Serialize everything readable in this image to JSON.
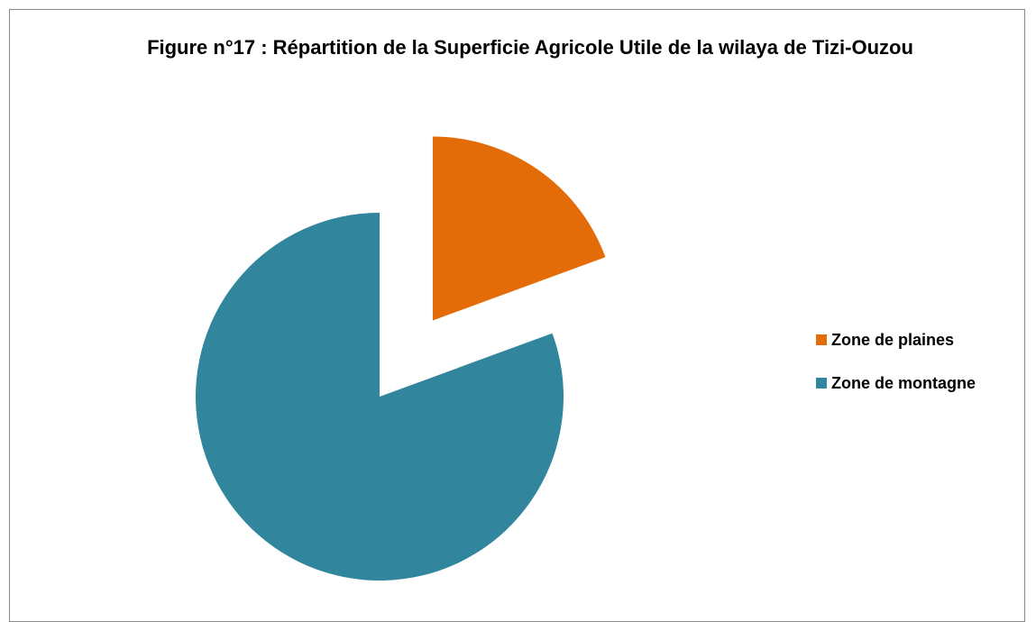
{
  "chart_data": {
    "type": "pie",
    "title": "Figure n°17 : Répartition de la Superficie Agricole Utile de la wilaya de Tizi-Ouzou",
    "categories": [
      "Zone de plaines",
      "Zone de montagne"
    ],
    "values": [
      19.4,
      80.6
    ],
    "colors": [
      "#e36c09",
      "#31859c"
    ],
    "legend": "right"
  }
}
